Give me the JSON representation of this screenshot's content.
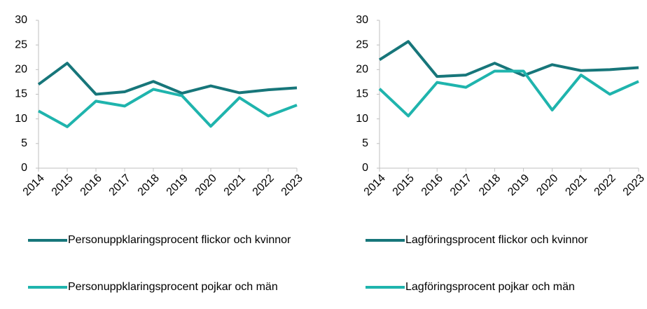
{
  "chart_data": [
    {
      "type": "line",
      "categories": [
        "2014",
        "2015",
        "2016",
        "2017",
        "2018",
        "2019",
        "2020",
        "2021",
        "2022",
        "2023"
      ],
      "series": [
        {
          "name": "Personuppklaringsprocent flickor och kvinnor",
          "color": "#17767a",
          "values": [
            17.0,
            21.3,
            15.0,
            15.5,
            17.6,
            15.2,
            16.7,
            15.3,
            15.9,
            16.3
          ]
        },
        {
          "name": "Personuppklaringsprocent pojkar och män",
          "color": "#1fb4ad",
          "values": [
            11.6,
            8.4,
            13.6,
            12.6,
            16.0,
            14.7,
            8.5,
            14.3,
            10.6,
            12.8
          ]
        }
      ],
      "ylim": [
        0,
        30
      ],
      "yticks": [
        0,
        5,
        10,
        15,
        20,
        25,
        30
      ],
      "grid": false,
      "legend": "bottom"
    },
    {
      "type": "line",
      "categories": [
        "2014",
        "2015",
        "2016",
        "2017",
        "2018",
        "2019",
        "2020",
        "2021",
        "2022",
        "2023"
      ],
      "series": [
        {
          "name": "Lagföringsprocent flickor och kvinnor",
          "color": "#17767a",
          "values": [
            22.0,
            25.7,
            18.6,
            18.9,
            21.3,
            18.8,
            21.0,
            19.8,
            20.0,
            20.4
          ]
        },
        {
          "name": "Lagföringsprocent pojkar och män",
          "color": "#1fb4ad",
          "values": [
            16.1,
            10.6,
            17.4,
            16.4,
            19.7,
            19.7,
            11.8,
            18.9,
            15.0,
            17.6
          ]
        }
      ],
      "ylim": [
        0,
        30
      ],
      "yticks": [
        0,
        5,
        10,
        15,
        20,
        25,
        30
      ],
      "grid": false,
      "legend": "bottom"
    }
  ]
}
